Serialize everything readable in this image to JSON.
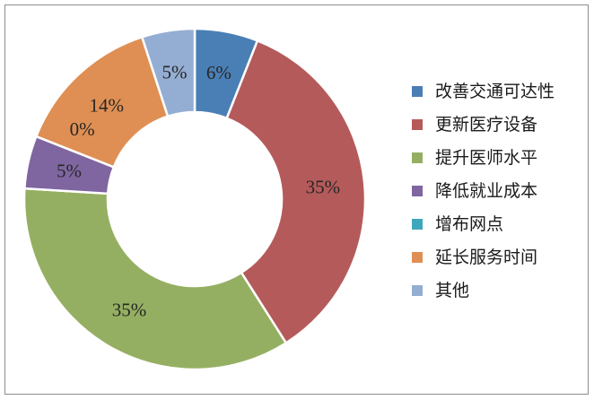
{
  "chart_data": {
    "type": "pie",
    "donut": true,
    "title": "",
    "legend_position": "right",
    "labels": [
      "改善交通可达性",
      "更新医疗设备",
      "提升医师水平",
      "降低就业成本",
      "增布网点",
      "延长服务时间",
      "其他"
    ],
    "values": [
      6,
      35,
      35,
      5,
      0,
      14,
      5
    ],
    "data_labels": [
      "6%",
      "35%",
      "35%",
      "5%",
      "0%",
      "14%",
      "5%"
    ],
    "colors": [
      "#4a7fb5",
      "#b55a5b",
      "#95af62",
      "#7f66a0",
      "#3fa6bb",
      "#df8f53",
      "#94aed3"
    ]
  }
}
